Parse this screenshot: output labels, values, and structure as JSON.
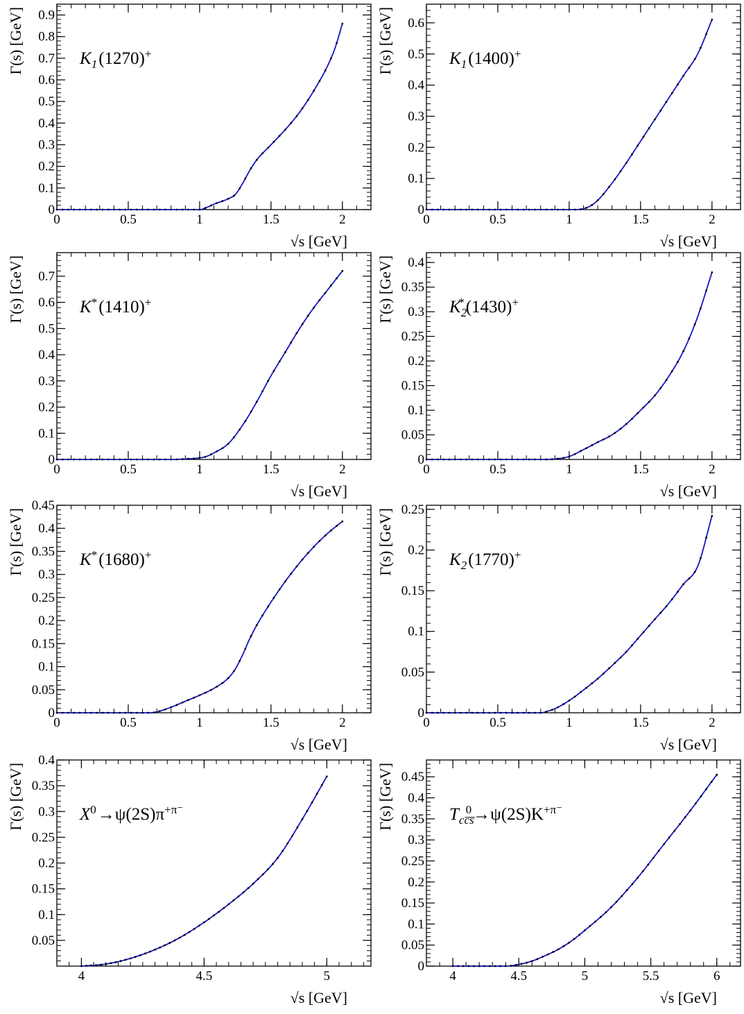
{
  "figure": {
    "ylabel": "Γ(s) [GeV]",
    "xlabel": "√s [GeV]"
  },
  "colors": {
    "curve": "#1515c8",
    "points": "#000000",
    "axes": "#000000"
  },
  "chart_data": [
    {
      "type": "line",
      "label_base": "K",
      "label_sub": "1",
      "label_sup": "",
      "label_rest": "(1270)",
      "label_charge": "+",
      "xlabel": "√s [GeV]",
      "ylabel": "Γ(s) [GeV]",
      "xlim": [
        0,
        2.2
      ],
      "ylim": [
        0,
        0.95
      ],
      "xticks": [
        0,
        0.5,
        1,
        1.5,
        2
      ],
      "yticks": [
        0,
        0.1,
        0.2,
        0.3,
        0.4,
        0.5,
        0.6,
        0.7,
        0.8,
        0.9
      ],
      "x_start": 0,
      "x_end": 2.0,
      "curve": [
        [
          0,
          0
        ],
        [
          1.0,
          0
        ],
        [
          1.05,
          0.01
        ],
        [
          1.1,
          0.025
        ],
        [
          1.2,
          0.05
        ],
        [
          1.25,
          0.07
        ],
        [
          1.3,
          0.12
        ],
        [
          1.35,
          0.18
        ],
        [
          1.4,
          0.23
        ],
        [
          1.5,
          0.3
        ],
        [
          1.6,
          0.37
        ],
        [
          1.7,
          0.45
        ],
        [
          1.8,
          0.55
        ],
        [
          1.9,
          0.67
        ],
        [
          1.95,
          0.75
        ],
        [
          2.0,
          0.86
        ]
      ]
    },
    {
      "type": "line",
      "label_base": "K",
      "label_sub": "1",
      "label_sup": "",
      "label_rest": "(1400)",
      "label_charge": "+",
      "xlabel": "√s [GeV]",
      "ylabel": "Γ(s) [GeV]",
      "xlim": [
        0,
        2.2
      ],
      "ylim": [
        0,
        0.66
      ],
      "xticks": [
        0,
        0.5,
        1,
        1.5,
        2
      ],
      "yticks": [
        0,
        0.1,
        0.2,
        0.3,
        0.4,
        0.5,
        0.6
      ],
      "x_start": 0,
      "x_end": 2.0,
      "curve": [
        [
          0,
          0
        ],
        [
          1.05,
          0
        ],
        [
          1.1,
          0.003
        ],
        [
          1.15,
          0.012
        ],
        [
          1.2,
          0.03
        ],
        [
          1.3,
          0.085
        ],
        [
          1.4,
          0.15
        ],
        [
          1.5,
          0.22
        ],
        [
          1.6,
          0.29
        ],
        [
          1.7,
          0.36
        ],
        [
          1.8,
          0.43
        ],
        [
          1.9,
          0.5
        ],
        [
          2.0,
          0.61
        ]
      ]
    },
    {
      "type": "line",
      "label_base": "K",
      "label_sub": "",
      "label_sup": "*",
      "label_rest": "(1410)",
      "label_charge": "+",
      "xlabel": "√s [GeV]",
      "ylabel": "Γ(s) [GeV]",
      "xlim": [
        0,
        2.2
      ],
      "ylim": [
        0,
        0.79
      ],
      "xticks": [
        0,
        0.5,
        1,
        1.5,
        2
      ],
      "yticks": [
        0,
        0.1,
        0.2,
        0.3,
        0.4,
        0.5,
        0.6,
        0.7
      ],
      "x_start": 0,
      "x_end": 2.0,
      "curve": [
        [
          0,
          0
        ],
        [
          0.8,
          0
        ],
        [
          0.9,
          0.002
        ],
        [
          1.0,
          0.006
        ],
        [
          1.05,
          0.012
        ],
        [
          1.1,
          0.025
        ],
        [
          1.2,
          0.06
        ],
        [
          1.3,
          0.13
        ],
        [
          1.4,
          0.22
        ],
        [
          1.5,
          0.32
        ],
        [
          1.6,
          0.41
        ],
        [
          1.7,
          0.5
        ],
        [
          1.8,
          0.58
        ],
        [
          1.9,
          0.65
        ],
        [
          2.0,
          0.72
        ]
      ]
    },
    {
      "type": "line",
      "label_base": "K",
      "label_sub": "2",
      "label_sup": "*",
      "label_rest": "(1430)",
      "label_charge": "+",
      "xlabel": "√s [GeV]",
      "ylabel": "Γ(s) [GeV]",
      "xlim": [
        0,
        2.2
      ],
      "ylim": [
        0,
        0.42
      ],
      "xticks": [
        0,
        0.5,
        1,
        1.5,
        2
      ],
      "yticks": [
        0,
        0.05,
        0.1,
        0.15,
        0.2,
        0.25,
        0.3,
        0.35,
        0.4
      ],
      "x_start": 0,
      "x_end": 2.0,
      "curve": [
        [
          0,
          0
        ],
        [
          0.8,
          0
        ],
        [
          0.9,
          0.001
        ],
        [
          1.0,
          0.006
        ],
        [
          1.1,
          0.02
        ],
        [
          1.2,
          0.035
        ],
        [
          1.3,
          0.05
        ],
        [
          1.4,
          0.072
        ],
        [
          1.5,
          0.1
        ],
        [
          1.6,
          0.13
        ],
        [
          1.7,
          0.17
        ],
        [
          1.8,
          0.22
        ],
        [
          1.9,
          0.29
        ],
        [
          2.0,
          0.38
        ]
      ]
    },
    {
      "type": "line",
      "label_base": "K",
      "label_sub": "",
      "label_sup": "*",
      "label_rest": "(1680)",
      "label_charge": "+",
      "xlabel": "√s [GeV]",
      "ylabel": "Γ(s) [GeV]",
      "xlim": [
        0,
        2.2
      ],
      "ylim": [
        0,
        0.45
      ],
      "xticks": [
        0,
        0.5,
        1,
        1.5,
        2
      ],
      "yticks": [
        0,
        0.05,
        0.1,
        0.15,
        0.2,
        0.25,
        0.3,
        0.35,
        0.4,
        0.45
      ],
      "x_start": 0,
      "x_end": 2.0,
      "curve": [
        [
          0,
          0
        ],
        [
          0.65,
          0
        ],
        [
          0.7,
          0.002
        ],
        [
          0.8,
          0.012
        ],
        [
          0.9,
          0.025
        ],
        [
          1.0,
          0.038
        ],
        [
          1.1,
          0.053
        ],
        [
          1.2,
          0.075
        ],
        [
          1.25,
          0.095
        ],
        [
          1.3,
          0.125
        ],
        [
          1.35,
          0.16
        ],
        [
          1.4,
          0.19
        ],
        [
          1.5,
          0.24
        ],
        [
          1.6,
          0.285
        ],
        [
          1.7,
          0.325
        ],
        [
          1.8,
          0.36
        ],
        [
          1.9,
          0.39
        ],
        [
          2.0,
          0.415
        ]
      ]
    },
    {
      "type": "line",
      "label_base": "K",
      "label_sub": "2",
      "label_sup": "",
      "label_rest": "(1770)",
      "label_charge": "+",
      "xlabel": "√s [GeV]",
      "ylabel": "Γ(s) [GeV]",
      "xlim": [
        0,
        2.2
      ],
      "ylim": [
        0,
        0.255
      ],
      "xticks": [
        0,
        0.5,
        1,
        1.5,
        2
      ],
      "yticks": [
        0,
        0.05,
        0.1,
        0.15,
        0.2,
        0.25
      ],
      "x_start": 0,
      "x_end": 2.0,
      "curve": [
        [
          0,
          0
        ],
        [
          0.8,
          0
        ],
        [
          0.85,
          0.002
        ],
        [
          0.9,
          0.005
        ],
        [
          1.0,
          0.015
        ],
        [
          1.1,
          0.028
        ],
        [
          1.2,
          0.042
        ],
        [
          1.3,
          0.058
        ],
        [
          1.4,
          0.075
        ],
        [
          1.5,
          0.095
        ],
        [
          1.6,
          0.115
        ],
        [
          1.7,
          0.135
        ],
        [
          1.8,
          0.158
        ],
        [
          1.9,
          0.18
        ],
        [
          2.0,
          0.242
        ]
      ]
    },
    {
      "type": "line",
      "label_base": "X",
      "label_sub": "",
      "label_sup": "0",
      "label_rest": "→ψ(2S)π",
      "label_charge": "+π⁻",
      "xlabel": "√s [GeV]",
      "ylabel": "Γ(s) [GeV]",
      "xlim": [
        3.9,
        5.18
      ],
      "ylim": [
        0,
        0.4
      ],
      "xticks": [
        4,
        4.5,
        5
      ],
      "yticks": [
        0.05,
        0.1,
        0.15,
        0.2,
        0.25,
        0.3,
        0.35,
        0.4
      ],
      "x_start": 4.0,
      "x_end": 5.0,
      "curve": [
        [
          4.0,
          0
        ],
        [
          4.1,
          0.004
        ],
        [
          4.2,
          0.015
        ],
        [
          4.3,
          0.032
        ],
        [
          4.4,
          0.055
        ],
        [
          4.5,
          0.085
        ],
        [
          4.6,
          0.12
        ],
        [
          4.7,
          0.16
        ],
        [
          4.8,
          0.21
        ],
        [
          4.9,
          0.285
        ],
        [
          5.0,
          0.368
        ]
      ]
    },
    {
      "type": "line",
      "label_base": "T",
      "label_sub": "cc̅s̅",
      "label_sup": "0",
      "label_rest": "→ψ(2S)K",
      "label_charge": "+π⁻",
      "xlabel": "√s [GeV]",
      "ylabel": "Γ(s) [GeV]",
      "xlim": [
        3.8,
        6.18
      ],
      "ylim": [
        0,
        0.49
      ],
      "xticks": [
        4,
        4.5,
        5,
        5.5,
        6
      ],
      "yticks": [
        0,
        0.05,
        0.1,
        0.15,
        0.2,
        0.25,
        0.3,
        0.35,
        0.4,
        0.45
      ],
      "x_start": 4.0,
      "x_end": 6.0,
      "curve": [
        [
          4.0,
          0
        ],
        [
          4.4,
          0
        ],
        [
          4.5,
          0.004
        ],
        [
          4.6,
          0.012
        ],
        [
          4.7,
          0.025
        ],
        [
          4.8,
          0.04
        ],
        [
          4.9,
          0.06
        ],
        [
          5.0,
          0.085
        ],
        [
          5.2,
          0.14
        ],
        [
          5.4,
          0.21
        ],
        [
          5.6,
          0.29
        ],
        [
          5.8,
          0.37
        ],
        [
          6.0,
          0.455
        ]
      ]
    }
  ]
}
